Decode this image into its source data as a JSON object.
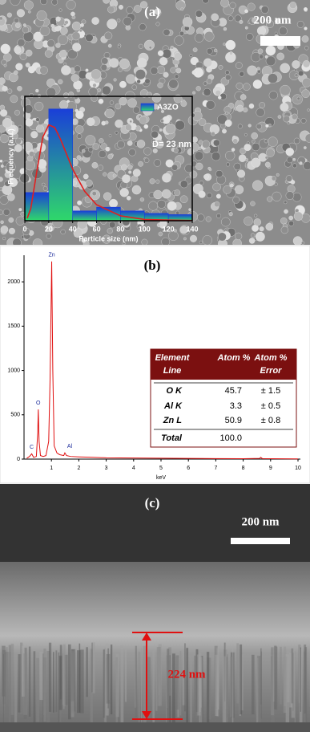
{
  "chart_data": [
    {
      "type": "histogram",
      "name": "A3ZO",
      "color": "#1a4fd6",
      "bins": [
        0,
        20,
        40,
        60,
        80,
        100,
        120,
        140
      ],
      "values": [
        0.23,
        0.91,
        0.08,
        0.11,
        0.08,
        0.06,
        0.05
      ],
      "xlim": [
        0,
        140
      ],
      "ylim": [
        0,
        1
      ],
      "xticks": [
        0,
        20,
        40,
        60,
        80,
        100,
        120,
        140
      ],
      "x_label": "Particle size (nm)",
      "y_label": "Frequency (a.u.)",
      "annotation": "D= 23 nm",
      "fit": {
        "color": "#e02020",
        "x": [
          2,
          5,
          10,
          15,
          20,
          25,
          30,
          40,
          50,
          60,
          80,
          100,
          120,
          140
        ],
        "values": [
          0.02,
          0.1,
          0.4,
          0.68,
          0.78,
          0.76,
          0.66,
          0.42,
          0.24,
          0.13,
          0.04,
          0.01,
          0.005,
          0.002
        ]
      }
    },
    {
      "type": "line",
      "color": "#e01010",
      "x": [
        0.1,
        0.2,
        0.28,
        0.35,
        0.45,
        0.5,
        0.52,
        0.55,
        0.6,
        0.7,
        0.8,
        0.9,
        0.95,
        1.01,
        1.05,
        1.1,
        1.2,
        1.3,
        1.45,
        1.49,
        1.55,
        1.7,
        2,
        2.5,
        3,
        4,
        5,
        6,
        7,
        8,
        8.6,
        8.64,
        8.7,
        9,
        9.5,
        10
      ],
      "values": [
        10,
        30,
        60,
        20,
        30,
        300,
        560,
        200,
        40,
        30,
        40,
        200,
        900,
        2230,
        1000,
        150,
        70,
        50,
        40,
        70,
        40,
        30,
        25,
        20,
        15,
        12,
        10,
        8,
        6,
        5,
        8,
        20,
        6,
        4,
        3,
        2
      ],
      "xlim": [
        0,
        10
      ],
      "ylim": [
        0,
        2300
      ],
      "xticks": [
        1,
        2,
        3,
        4,
        5,
        6,
        7,
        8,
        9,
        10
      ],
      "yticks": [
        0,
        500,
        1000,
        1500,
        2000
      ],
      "x_label": "keV",
      "peak_labels": [
        {
          "label": "C",
          "x": 0.28
        },
        {
          "label": "O",
          "x": 0.52
        },
        {
          "label": "Zn",
          "x": 1.01
        },
        {
          "label": "Al",
          "x": 1.49
        }
      ]
    }
  ],
  "panel_a": {
    "label": "(a)",
    "scale_bar": "200 nm"
  },
  "panel_b": {
    "label": "(b)",
    "table": {
      "header": [
        [
          "Element",
          "Line"
        ],
        [
          "Atom %"
        ],
        [
          "Atom %",
          "Error"
        ]
      ],
      "rows": [
        [
          "O K",
          "45.7",
          "± 1.5"
        ],
        [
          "Al K",
          "3.3",
          "± 0.5"
        ],
        [
          "Zn L",
          "50.9",
          "± 0.8"
        ],
        [
          "Total",
          "100.0"
        ]
      ]
    }
  },
  "panel_c": {
    "label": "(c)",
    "scale_bar": "200 nm",
    "thickness": "224 nm"
  }
}
